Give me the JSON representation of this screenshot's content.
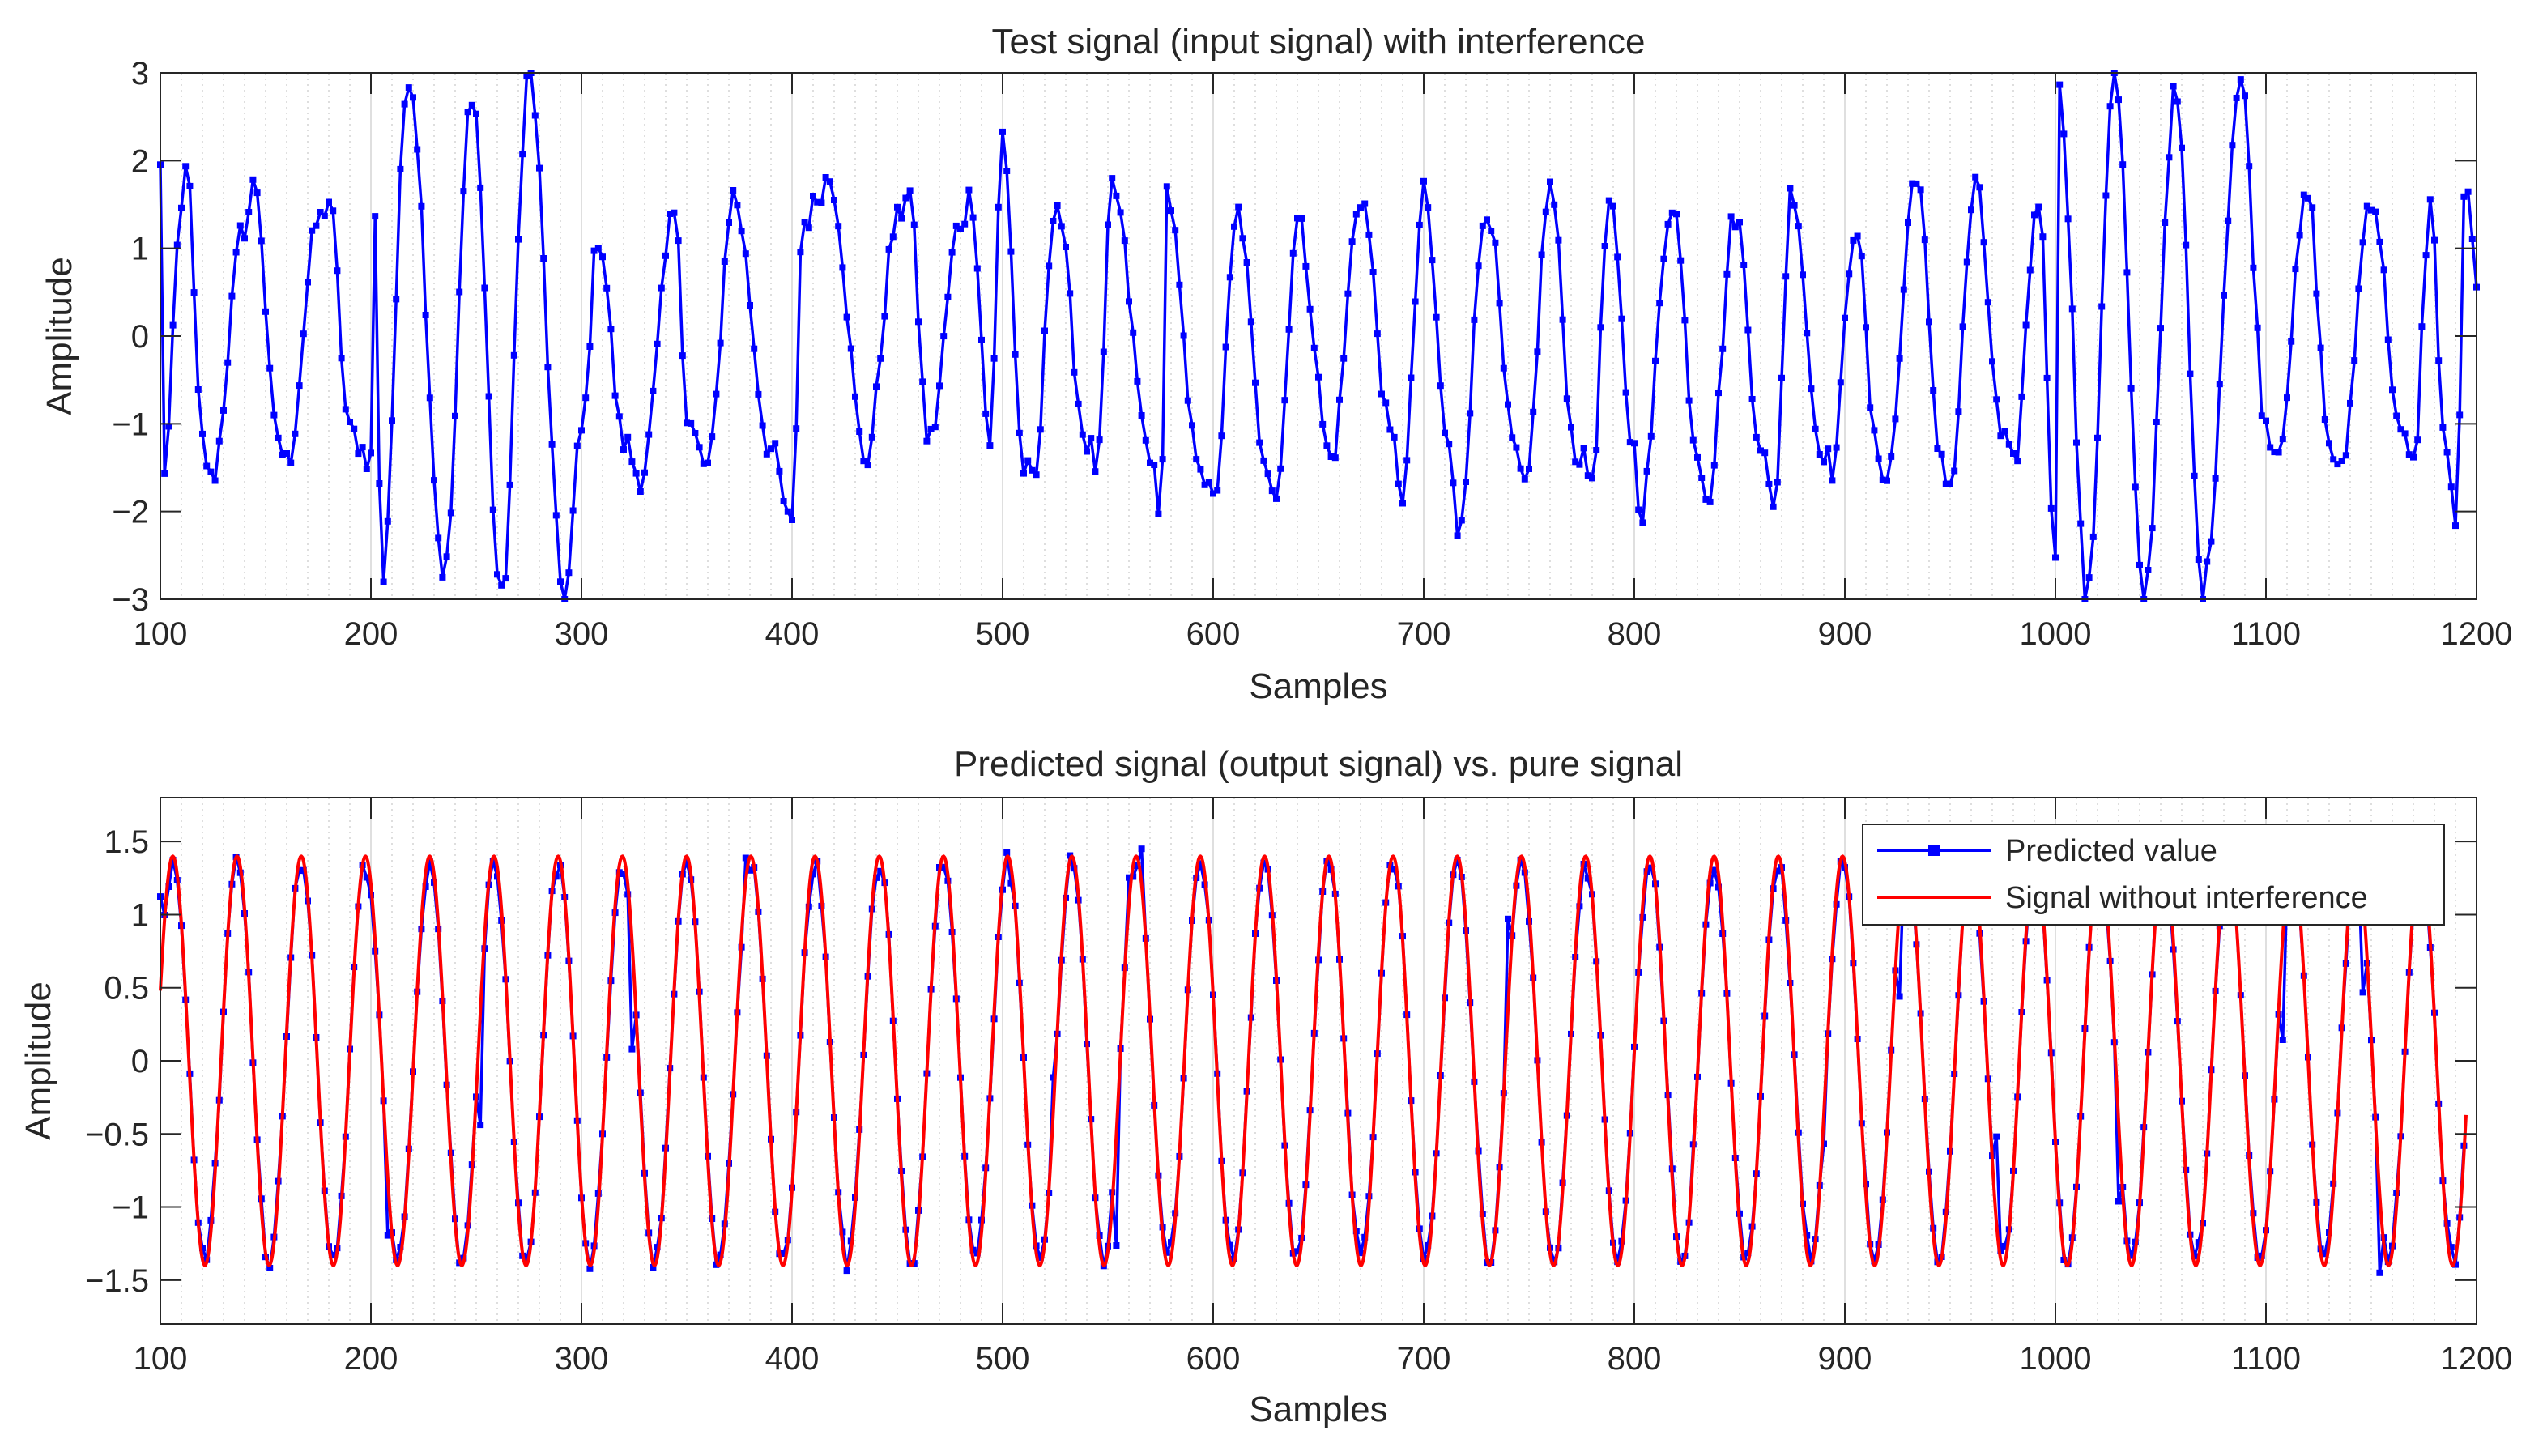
{
  "chart_data": [
    {
      "type": "line",
      "title": "Test signal (input signal) with interference",
      "xlabel": "Samples",
      "ylabel": "Amplitude",
      "xlim": [
        100,
        1200
      ],
      "ylim": [
        -3,
        3
      ],
      "xticks": [
        100,
        200,
        300,
        400,
        500,
        600,
        700,
        800,
        900,
        1000,
        1100,
        1200
      ],
      "yticks": [
        -3,
        -2,
        -1,
        0,
        1,
        2,
        3
      ],
      "xtick_labels": [
        "100",
        "200",
        "300",
        "400",
        "500",
        "600",
        "700",
        "800",
        "900",
        "1000",
        "1100",
        "1200"
      ],
      "ytick_labels": [
        "−3",
        "−2",
        "−1",
        "0",
        "1",
        "2",
        "3"
      ],
      "grid": true,
      "series": [
        {
          "name": "Test signal",
          "color": "#0000ff",
          "marker": "square",
          "description": "noisy periodic signal, period ~30 samples, amplitude ~1.4 with interference; larger amplitude (~2.8) bursts near samples 200-300 and 1000-1100",
          "anchors": [
            [
              100,
              1.9
            ],
            [
              102,
              -1.5
            ],
            [
              110,
              1.4
            ],
            [
              112,
              2.05
            ],
            [
              120,
              -1.2
            ],
            [
              124,
              -1.65
            ],
            [
              140,
              1.25
            ],
            [
              145,
              1.75
            ],
            [
              155,
              -1.1
            ],
            [
              160,
              -1.45
            ],
            [
              175,
              1.3
            ],
            [
              180,
              1.55
            ],
            [
              190,
              -1.1
            ],
            [
              200,
              -1.4
            ],
            [
              202,
              1.4
            ],
            [
              205,
              -2.8
            ],
            [
              218,
              3.0
            ],
            [
              235,
              -2.7
            ],
            [
              248,
              2.8
            ],
            [
              262,
              -3.0
            ],
            [
              275,
              3.0
            ],
            [
              292,
              -3.0
            ],
            [
              300,
              -1.1
            ],
            [
              308,
              1.15
            ],
            [
              320,
              -1.2
            ],
            [
              328,
              -1.6
            ],
            [
              345,
              1.5
            ],
            [
              350,
              -1.0
            ],
            [
              360,
              -1.5
            ],
            [
              372,
              1.6
            ],
            [
              390,
              -1.3
            ],
            [
              400,
              -2.2
            ],
            [
              405,
              1.3
            ],
            [
              418,
              1.8
            ],
            [
              435,
              -1.4
            ],
            [
              450,
              1.3
            ],
            [
              455,
              1.7
            ],
            [
              465,
              -1.2
            ],
            [
              480,
              1.3
            ],
            [
              485,
              1.6
            ],
            [
              494,
              -1.2
            ],
            [
              500,
              2.3
            ],
            [
              510,
              -1.5
            ],
            [
              515,
              -1.7
            ],
            [
              525,
              1.55
            ],
            [
              540,
              -1.2
            ],
            [
              545,
              -1.5
            ],
            [
              552,
              1.7
            ],
            [
              570,
              -1.3
            ],
            [
              575,
              -2.2
            ],
            [
              578,
              1.65
            ],
            [
              592,
              -1.3
            ],
            [
              600,
              -1.9
            ],
            [
              612,
              1.4
            ],
            [
              624,
              -1.3
            ],
            [
              630,
              -1.8
            ],
            [
              640,
              1.3
            ],
            [
              656,
              -1.4
            ],
            [
              670,
              1.6
            ],
            [
              685,
              -1.2
            ],
            [
              690,
              -1.8
            ],
            [
              700,
              1.6
            ],
            [
              712,
              -1.3
            ],
            [
              716,
              -2.2
            ],
            [
              730,
              1.5
            ],
            [
              743,
              -1.3
            ],
            [
              748,
              -1.8
            ],
            [
              760,
              1.7
            ],
            [
              772,
              -1.3
            ],
            [
              780,
              -1.6
            ],
            [
              788,
              1.5
            ],
            [
              800,
              -1.3
            ],
            [
              803,
              -2.0
            ],
            [
              818,
              1.55
            ],
            [
              830,
              -1.3
            ],
            [
              835,
              -1.8
            ],
            [
              848,
              1.4
            ],
            [
              860,
              -1.2
            ],
            [
              866,
              -2.0
            ],
            [
              875,
              1.7
            ],
            [
              888,
              -1.2
            ],
            [
              894,
              -1.5
            ],
            [
              905,
              1.3
            ],
            [
              915,
              -1.3
            ],
            [
              920,
              -1.6
            ],
            [
              934,
              1.9
            ],
            [
              945,
              -1.3
            ],
            [
              950,
              -1.7
            ],
            [
              962,
              1.7
            ],
            [
              975,
              -1.2
            ],
            [
              980,
              -1.5
            ],
            [
              992,
              1.6
            ],
            [
              1000,
              -2.4
            ],
            [
              1002,
              2.75
            ],
            [
              1015,
              -3.0
            ],
            [
              1028,
              3.0
            ],
            [
              1042,
              -3.0
            ],
            [
              1057,
              2.75
            ],
            [
              1070,
              -2.9
            ],
            [
              1088,
              2.9
            ],
            [
              1100,
              -1.0
            ],
            [
              1105,
              -1.3
            ],
            [
              1120,
              1.6
            ],
            [
              1130,
              -1.2
            ],
            [
              1135,
              -1.6
            ],
            [
              1150,
              1.6
            ],
            [
              1165,
              -1.2
            ],
            [
              1170,
              -1.5
            ],
            [
              1178,
              1.5
            ],
            [
              1185,
              -1.2
            ],
            [
              1190,
              -2.2
            ],
            [
              1195,
              1.85
            ],
            [
              1200,
              0.5
            ]
          ]
        }
      ]
    },
    {
      "type": "line",
      "title": "Predicted signal (output signal) vs. pure signal",
      "xlabel": "Samples",
      "ylabel": "Amplitude",
      "xlim": [
        100,
        1200
      ],
      "ylim": [
        -1.8,
        1.8
      ],
      "xticks": [
        100,
        200,
        300,
        400,
        500,
        600,
        700,
        800,
        900,
        1000,
        1100,
        1200
      ],
      "yticks": [
        -1.5,
        -1,
        -0.5,
        0,
        0.5,
        1,
        1.5
      ],
      "xtick_labels": [
        "100",
        "200",
        "300",
        "400",
        "500",
        "600",
        "700",
        "800",
        "900",
        "1000",
        "1100",
        "1200"
      ],
      "ytick_labels": [
        "−1.5",
        "−1",
        "−0.5",
        "0",
        "0.5",
        "1",
        "1.5"
      ],
      "grid": true,
      "legend": "top-right",
      "series": [
        {
          "name": "Predicted value",
          "color": "#0000ff",
          "marker": "square",
          "description": "prediction closely tracks the pure sine, amplitude ~1.4, with occasional deviations",
          "amplitude": 1.4,
          "period": 30.5
        },
        {
          "name": "Signal without interference",
          "color": "#ff0000",
          "marker": "none",
          "description": "pure sinusoid, amplitude 1.4, period ~30.5 samples, x range 100 to 1195",
          "amplitude": 1.4,
          "period": 30.5,
          "x_range": [
            100,
            1195
          ]
        }
      ]
    }
  ]
}
